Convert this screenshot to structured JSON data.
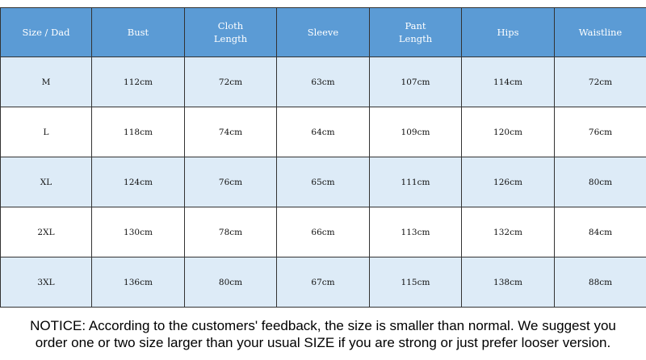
{
  "table": {
    "headers": [
      "Size / Dad",
      "Bust",
      "Cloth\nLength",
      "Sleeve",
      "Pant\nLength",
      "Hips",
      "Waistline"
    ],
    "rows": [
      [
        "M",
        "112cm",
        "72cm",
        "63cm",
        "107cm",
        "114cm",
        "72cm"
      ],
      [
        "L",
        "118cm",
        "74cm",
        "64cm",
        "109cm",
        "120cm",
        "76cm"
      ],
      [
        "XL",
        "124cm",
        "76cm",
        "65cm",
        "111cm",
        "126cm",
        "80cm"
      ],
      [
        "2XL",
        "130cm",
        "78cm",
        "66cm",
        "113cm",
        "132cm",
        "84cm"
      ],
      [
        "3XL",
        "136cm",
        "80cm",
        "67cm",
        "115cm",
        "138cm",
        "88cm"
      ]
    ]
  },
  "notice": {
    "line1": "NOTICE: According to the customers' feedback, the size is smaller than normal. We suggest you",
    "line2": "order one or two size larger than your usual SIZE if you are strong or just prefer looser version."
  },
  "colors": {
    "header_bg": "#5b9bd5",
    "header_text": "#ffffff",
    "alt_row_bg": "#ddebf7",
    "border": "#333333"
  }
}
